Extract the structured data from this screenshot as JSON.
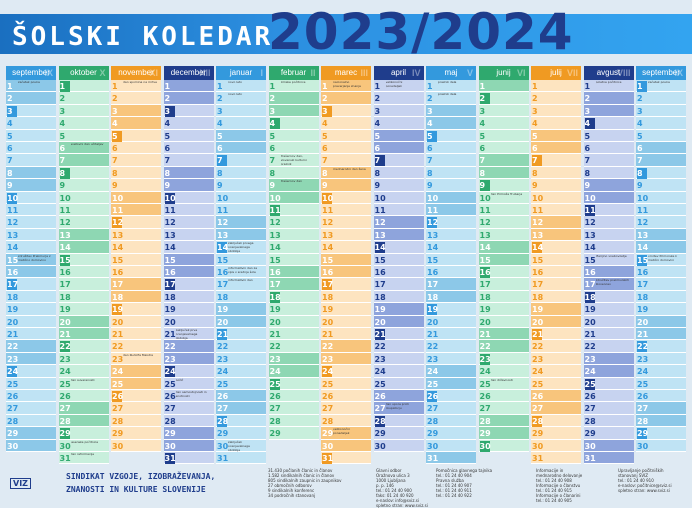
{
  "header": {
    "title_a": "ŠOLSKI ",
    "title_b": "KOLEDAR",
    "years": "2023/2024"
  },
  "months": [
    {
      "name": "september",
      "roman": "IX",
      "bg": "#3399dd",
      "light": "#bfe3f4",
      "weekend": "#8cc8e8",
      "first_dow": 5,
      "days": 30
    },
    {
      "name": "oktober",
      "roman": "X",
      "bg": "#2fa96e",
      "light": "#c8efdc",
      "weekend": "#8ed7b3",
      "first_dow": 0,
      "days": 31
    },
    {
      "name": "november",
      "roman": "XI",
      "bg": "#f09a22",
      "light": "#fde4c0",
      "weekend": "#f8c57c",
      "first_dow": 3,
      "days": 30
    },
    {
      "name": "december",
      "roman": "XII",
      "bg": "#1f3d8c",
      "light": "#c7d3f0",
      "weekend": "#8ea4dc",
      "first_dow": 5,
      "days": 31
    },
    {
      "name": "januar",
      "roman": "I",
      "bg": "#3399dd",
      "light": "#bfe3f4",
      "weekend": "#8cc8e8",
      "first_dow": 1,
      "days": 31
    },
    {
      "name": "februar",
      "roman": "II",
      "bg": "#2fa96e",
      "light": "#c8efdc",
      "weekend": "#8ed7b3",
      "first_dow": 4,
      "days": 29
    },
    {
      "name": "marec",
      "roman": "III",
      "bg": "#f09a22",
      "light": "#fde4c0",
      "weekend": "#f8c57c",
      "first_dow": 5,
      "days": 31
    },
    {
      "name": "april",
      "roman": "IV",
      "bg": "#1f3d8c",
      "light": "#c7d3f0",
      "weekend": "#8ea4dc",
      "first_dow": 1,
      "days": 30
    },
    {
      "name": "maj",
      "roman": "V",
      "bg": "#3399dd",
      "light": "#bfe3f4",
      "weekend": "#8cc8e8",
      "first_dow": 3,
      "days": 31
    },
    {
      "name": "junij",
      "roman": "VI",
      "bg": "#2fa96e",
      "light": "#c8efdc",
      "weekend": "#8ed7b3",
      "first_dow": 6,
      "days": 30
    },
    {
      "name": "julij",
      "roman": "VII",
      "bg": "#f09a22",
      "light": "#fde4c0",
      "weekend": "#f8c57c",
      "first_dow": 1,
      "days": 31
    },
    {
      "name": "avgust",
      "roman": "VIII",
      "bg": "#1f3d8c",
      "light": "#c7d3f0",
      "weekend": "#8ea4dc",
      "first_dow": 4,
      "days": 31
    },
    {
      "name": "september",
      "roman": "IX",
      "bg": "#3399dd",
      "light": "#bfe3f4",
      "weekend": "#8cc8e8",
      "first_dow": 0,
      "days": 30
    }
  ],
  "events": {
    "0": {
      "1": "začetek pouka",
      "15": "združitev Prekmurja z matično domovino"
    },
    "1": {
      "6": "svetovni dan učiteljev",
      "25": "dan suverenosti",
      "30": "jesenske počitnice",
      "31": "dan reformacije"
    },
    "2": {
      "1": "dan spomina na mrtve",
      "23": "dan Rudolfa Maistra"
    },
    "3": {
      "21": "zaključek prve ocenjevalnega obdobja",
      "25": "božič",
      "26": "dan samostojnosti in enotnosti"
    },
    "4": {
      "1": "novo leto",
      "2": "novo leto",
      "14": "zaključek prvega ocenjevalnega obdobja",
      "16": "informativni dan za vpis v srednje šole",
      "17": "informativni dan",
      "30": "zaključek ocenjevalnega obdobja"
    },
    "5": {
      "1": "zimske počitnice",
      "7": "Prešernov dan, slovenski kulturni praznik",
      "9": "Prešernov dan"
    },
    "6": {
      "1": "nacionalno preverjanje znanja",
      "8": "mednarodni dan žena",
      "29": "velikonočni ponedeljek"
    },
    "7": {
      "1": "velikonočni ponedeljek",
      "27": "dan upora proti okupatorju"
    },
    "8": {
      "1": "praznik dela",
      "2": "praznik dela"
    },
    "9": {
      "10": "dan Primoža Trubarja",
      "25": "dan državnosti"
    },
    "10": {},
    "11": {
      "15": "Marijino vnebovzetje",
      "17": "združitev prekmurskih Slovencev",
      "1": "poletne počitnice"
    },
    "12": {
      "1": "začetek pouka",
      "15": "vrnitev Primorske k matični domovini"
    }
  },
  "footer": {
    "viz": "VIZ",
    "union_line1": "SINDIKAT VZGOJE, IZOBRAŽEVANJA,",
    "union_line2": "ZNANOSTI IN KULTURE SLOVENIJE",
    "stats": [
      "31.430 počlanih članic in članov",
      "1.582 sindikalnih članic in članov",
      "805 sindikalnih zaupnic in zaupnikov",
      "27 območnih odborov",
      "9 sindikalnih konferenc",
      "34 področnih stanovanj"
    ],
    "address": [
      "Glavni odbor",
      "Oražnova ulica 3",
      "1000 Ljubljana",
      "p. p. 146",
      "tel.: 01 24 40 900",
      "faks: 01 24 40 920",
      "e-naslov: info@sviz.si",
      "spletno stran: www.sviz.si"
    ],
    "office": [
      "Pomočnica glavnega tajnika",
      "tel.: 01 24 40 904",
      "Pravna služba",
      "tel.: 01 24 40 907",
      "tel.: 01 24 40 911",
      "tel.: 01 24 40 922"
    ],
    "info": [
      "Informacije in",
      "mednarodno delovanje",
      "tel.: 01 24 40 908",
      "Informacije o članstvu",
      "tel.: 01 24 40 915",
      "Informacije o članarini",
      "tel.: 01 24 40 905"
    ],
    "fund": [
      "Upravljanje počitniških",
      "stanovanj SVIZ",
      "tel.: 01 24 40 910",
      "e-naslov: počitnice@sviz.si",
      "spletno stran: www.sviz.si"
    ]
  }
}
